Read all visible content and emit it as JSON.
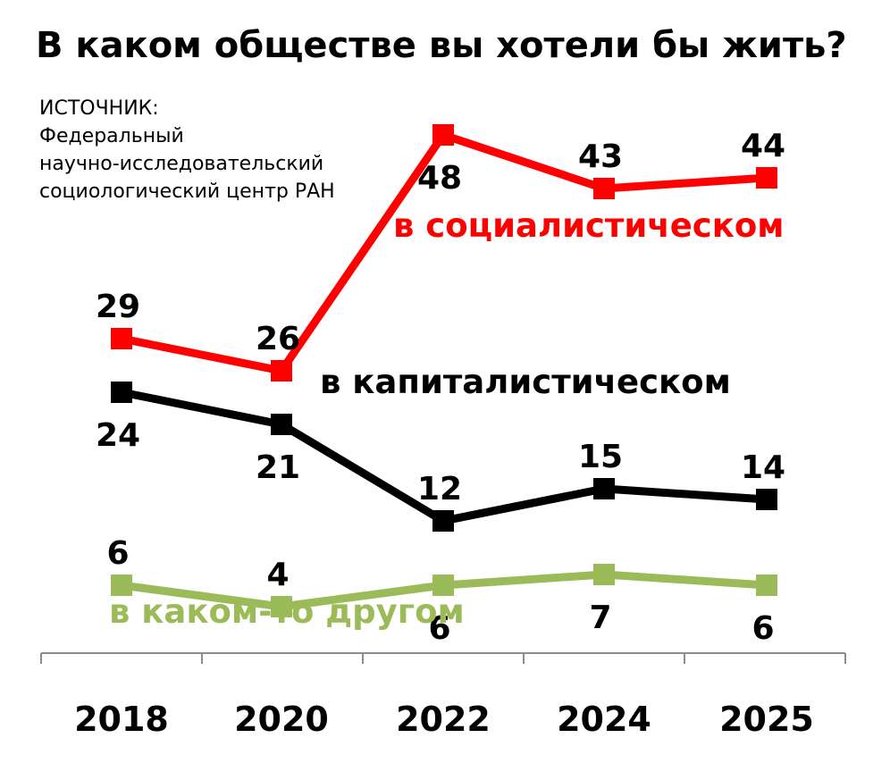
{
  "title": "В каком обществе вы хотели бы жить?",
  "source": {
    "lines": [
      "ИСТОЧНИК:",
      "Федеральный",
      "научно-исследовательский",
      "социологический центр РАН"
    ]
  },
  "colors": {
    "socialist": "#ff0000",
    "capitalist": "#000000",
    "other": "#9bbb59"
  },
  "chart_data": {
    "type": "line",
    "title": "В каком обществе вы хотели бы жить?",
    "categories": [
      "2018",
      "2020",
      "2022",
      "2024",
      "2025"
    ],
    "series": [
      {
        "name": "в социалистическом",
        "key": "socialist",
        "values": [
          29,
          26,
          48,
          43,
          44
        ],
        "label_pos": [
          "above",
          "above",
          "below",
          "above",
          "above"
        ]
      },
      {
        "name": "в капиталистическом",
        "key": "capitalist",
        "values": [
          24,
          21,
          12,
          15,
          14
        ],
        "label_pos": [
          "below",
          "below",
          "above",
          "above",
          "above"
        ]
      },
      {
        "name": "в каком-то другом",
        "key": "other",
        "values": [
          6,
          4,
          6,
          7,
          6
        ],
        "label_pos": [
          "above",
          "above",
          "below",
          "below",
          "below"
        ]
      }
    ],
    "ylim": [
      0,
      50
    ],
    "grid": false,
    "legend": "inline labels"
  }
}
